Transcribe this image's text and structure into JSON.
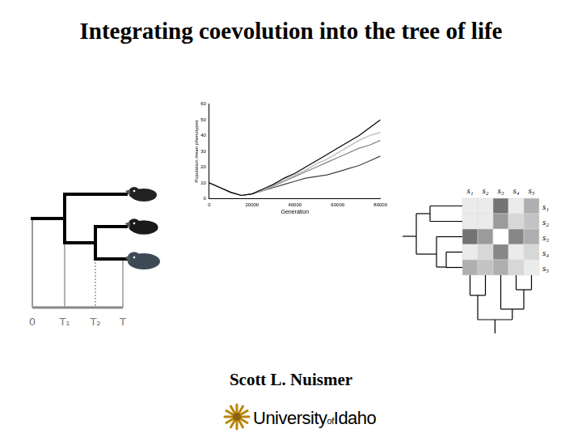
{
  "title": "Integrating coevolution into the tree of life",
  "author": "Scott L. Nuismer",
  "affiliation": {
    "parts": [
      "University",
      "of",
      "Idaho"
    ]
  },
  "phylogeny": {
    "time_labels": [
      "0",
      "T₁",
      "T₂",
      "T"
    ]
  },
  "chart_data": {
    "type": "line",
    "x_label": "Generation",
    "y_label": "Population mean phenotypes",
    "x": [
      0,
      5000,
      10000,
      15000,
      20000,
      25000,
      30000,
      35000,
      40000,
      45000,
      50000,
      55000,
      60000,
      65000,
      70000,
      75000,
      80000
    ],
    "series": [
      {
        "color": "#000000",
        "values": [
          10,
          7,
          4,
          2,
          3,
          6,
          9,
          13,
          16,
          20,
          24,
          28,
          32,
          36,
          40,
          45,
          50
        ]
      },
      {
        "color": "#b4b4b4",
        "values": [
          10,
          7,
          4,
          2,
          3,
          5,
          8,
          12,
          15,
          18,
          22,
          25,
          29,
          33,
          37,
          40,
          42
        ]
      },
      {
        "color": "#808080",
        "values": [
          10,
          7,
          4,
          2,
          3,
          5,
          8,
          11,
          14,
          17,
          20,
          23,
          26,
          29,
          32,
          34,
          37
        ]
      },
      {
        "color": "#404040",
        "values": [
          10,
          7,
          4,
          2,
          3,
          5,
          7,
          9,
          11,
          13,
          14,
          15,
          17,
          19,
          21,
          24,
          27
        ]
      }
    ],
    "xlim": [
      0,
      80000
    ],
    "xticks": [
      0,
      20000,
      40000,
      60000,
      80000
    ],
    "ylim": [
      0,
      60
    ],
    "yticks": [
      0,
      10,
      20,
      30,
      40,
      50,
      60
    ],
    "grid": false
  },
  "matrix": {
    "labels": [
      "s₁",
      "s₂",
      "s₃",
      "s₄",
      "s₅"
    ],
    "cells": [
      [
        0.1,
        0.1,
        0.7,
        0.1,
        0.4
      ],
      [
        0.1,
        0.1,
        0.5,
        0.2,
        0.3
      ],
      [
        0.7,
        0.5,
        0.0,
        0.6,
        0.4
      ],
      [
        0.1,
        0.2,
        0.6,
        0.1,
        0.2
      ],
      [
        0.4,
        0.3,
        0.4,
        0.2,
        0.1
      ]
    ]
  }
}
